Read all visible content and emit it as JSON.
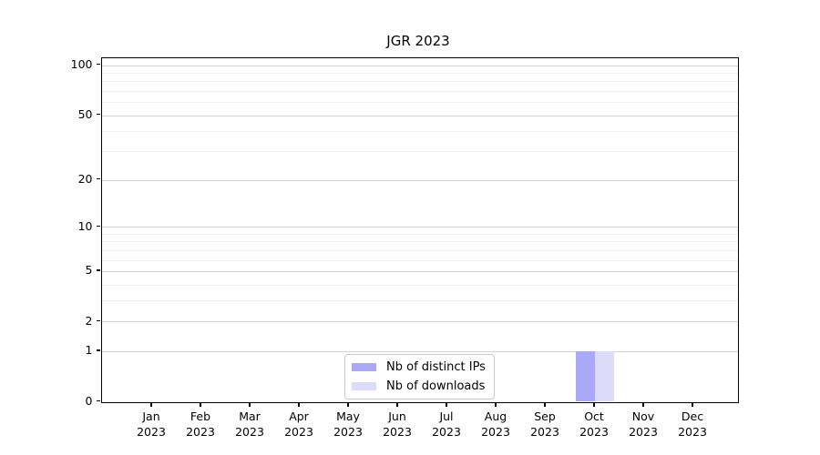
{
  "chart_data": {
    "type": "bar",
    "title": "JGR 2023",
    "x_axis": {
      "months": [
        "Jan",
        "Feb",
        "Mar",
        "Apr",
        "May",
        "Jun",
        "Jul",
        "Aug",
        "Sep",
        "Oct",
        "Nov",
        "Dec"
      ],
      "year": "2023"
    },
    "y_axis": {
      "scale": "log10(1+v)",
      "tick_values": [
        0,
        1,
        2,
        5,
        10,
        20,
        50,
        100
      ],
      "minor_gridline_values": [
        3,
        4,
        6,
        7,
        8,
        9,
        30,
        40,
        60,
        70,
        80,
        90
      ],
      "max": 111
    },
    "series": [
      {
        "name": "Nb of distinct IPs",
        "color": "#a9a9f7",
        "values": [
          0,
          0,
          0,
          0,
          0,
          0,
          0,
          0,
          0,
          1,
          0,
          0
        ]
      },
      {
        "name": "Nb of downloads",
        "color": "#dcdcf8",
        "values": [
          0,
          0,
          0,
          0,
          0,
          0,
          0,
          0,
          0,
          1,
          0,
          0
        ]
      }
    ],
    "legend": {
      "entries": [
        "Nb of distinct IPs",
        "Nb of downloads"
      ],
      "position": "lower center"
    },
    "colors": {
      "major_grid": "#d2d2d2",
      "minor_grid": "#efefef",
      "spine": "#000000",
      "text": "#000000",
      "background": "#ffffff"
    }
  }
}
